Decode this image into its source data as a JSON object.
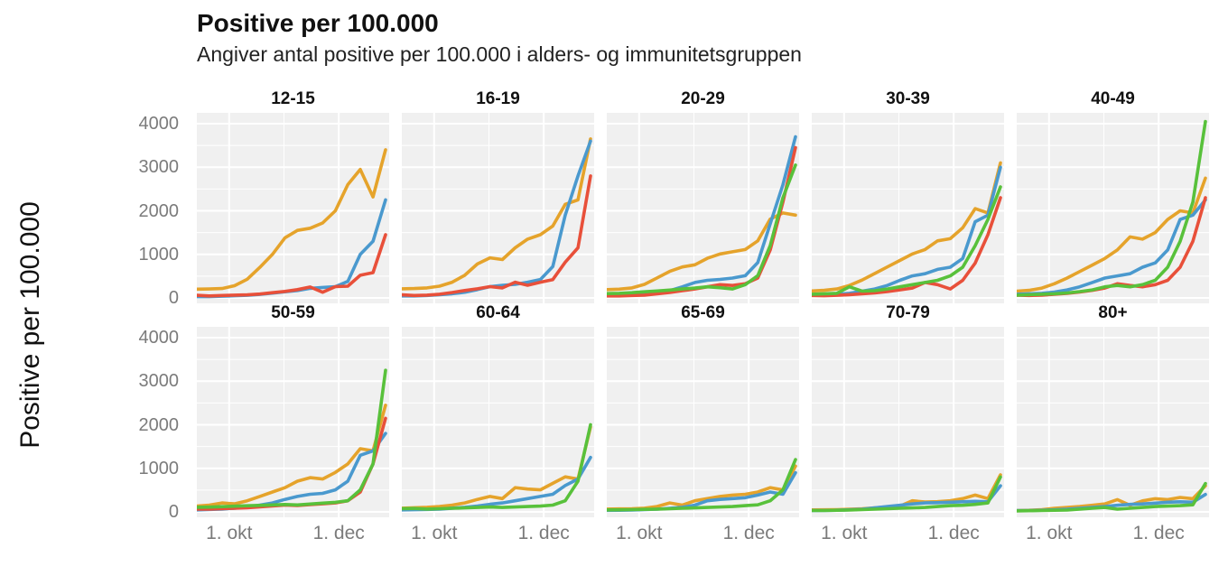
{
  "header": {
    "title": "Positive per 100.000",
    "subtitle": "Angiver antal positive per 100.000 i alders- og immunitetsgruppen"
  },
  "chart_data": {
    "type": "line",
    "title": "Positive per 100.000",
    "subtitle": "Angiver antal positive per 100.000 i alders- og immunitetsgruppen",
    "ylabel": "Positive per 100.000",
    "xlabel": "",
    "ylim": [
      0,
      4000
    ],
    "yticks": [
      0,
      1000,
      2000,
      3000,
      4000
    ],
    "y_minor": [
      500,
      1500,
      2500,
      3500
    ],
    "xticks": [
      {
        "label": "1. okt",
        "pos": 16.8
      },
      {
        "label": "1. dec",
        "pos": 73.8
      }
    ],
    "x_minor_pos": [
      45.3
    ],
    "grid": "on",
    "legend": "none",
    "panel_bg": "#f0f0f0",
    "grid_color": "#ffffff",
    "palette": {
      "orange": "#E5A32B",
      "blue": "#4A99CE",
      "red": "#E8503A",
      "green": "#58C13B"
    },
    "x_pct": [
      0,
      6.5,
      13.1,
      19.6,
      26.2,
      32.7,
      39.3,
      45.8,
      52.3,
      58.9,
      65.4,
      72.0,
      78.5,
      85.0,
      91.6,
      98.1
    ],
    "rows": [
      {
        "facets": [
          {
            "label": "12-15",
            "series": [
              {
                "color": "orange",
                "values": [
                  200,
                  205,
                  215,
                  280,
                  430,
                  700,
                  1000,
                  1380,
                  1550,
                  1600,
                  1720,
                  2000,
                  2600,
                  2950,
                  2320,
                  3400
                ]
              },
              {
                "color": "blue",
                "values": [
                  30,
                  30,
                  40,
                  50,
                  60,
                  80,
                  110,
                  140,
                  170,
                  220,
                  240,
                  260,
                  380,
                  1000,
                  1300,
                  2250
                ]
              },
              {
                "color": "red",
                "values": [
                  60,
                  45,
                  55,
                  65,
                  70,
                  90,
                  120,
                  150,
                  190,
                  250,
                  130,
                  260,
                  270,
                  520,
                  580,
                  1450
                ]
              }
            ]
          },
          {
            "label": "16-19",
            "series": [
              {
                "color": "orange",
                "values": [
                  210,
                  215,
                  230,
                  270,
                  360,
                  520,
                  780,
                  920,
                  880,
                  1150,
                  1350,
                  1450,
                  1650,
                  2150,
                  2250,
                  3650
                ]
              },
              {
                "color": "blue",
                "values": [
                  45,
                  45,
                  55,
                  75,
                  95,
                  130,
                  190,
                  260,
                  290,
                  310,
                  360,
                  420,
                  720,
                  1900,
                  2800,
                  3600
                ]
              },
              {
                "color": "red",
                "values": [
                  70,
                  55,
                  65,
                  85,
                  125,
                  170,
                  210,
                  260,
                  230,
                  360,
                  290,
                  360,
                  420,
                  820,
                  1150,
                  2800
                ]
              }
            ]
          },
          {
            "label": "20-29",
            "series": [
              {
                "color": "orange",
                "values": [
                  190,
                  200,
                  230,
                  310,
                  460,
                  610,
                  710,
                  760,
                  910,
                  1010,
                  1060,
                  1110,
                  1310,
                  1810,
                  1950,
                  1900
                ]
              },
              {
                "color": "blue",
                "values": [
                  65,
                  65,
                  75,
                  95,
                  125,
                  165,
                  255,
                  355,
                  405,
                  425,
                  455,
                  510,
                  810,
                  1700,
                  2600,
                  3700
                ]
              },
              {
                "color": "red",
                "values": [
                  45,
                  45,
                  55,
                  65,
                  95,
                  125,
                  165,
                  205,
                  255,
                  305,
                  285,
                  325,
                  455,
                  1100,
                  2200,
                  3450
                ]
              },
              {
                "color": "green",
                "values": [
                  100,
                  105,
                  120,
                  140,
                  160,
                  180,
                  205,
                  225,
                  255,
                  235,
                  205,
                  305,
                  510,
                  1200,
                  2300,
                  3050
                ]
              }
            ]
          },
          {
            "label": "30-39",
            "series": [
              {
                "color": "orange",
                "values": [
                  160,
                  175,
                  205,
                  285,
                  410,
                  560,
                  710,
                  860,
                  1010,
                  1110,
                  1310,
                  1360,
                  1610,
                  2050,
                  1950,
                  3100
                ]
              },
              {
                "color": "blue",
                "values": [
                  65,
                  75,
                  85,
                  105,
                  155,
                  205,
                  285,
                  405,
                  505,
                  555,
                  655,
                  705,
                  905,
                  1750,
                  1900,
                  3000
                ]
              },
              {
                "color": "red",
                "values": [
                  55,
                  50,
                  60,
                  75,
                  95,
                  115,
                  145,
                  185,
                  225,
                  355,
                  305,
                  205,
                  405,
                  800,
                  1450,
                  2300
                ]
              },
              {
                "color": "green",
                "values": [
                  85,
                  95,
                  105,
                  255,
                  155,
                  165,
                  205,
                  255,
                  305,
                  355,
                  405,
                  505,
                  705,
                  1200,
                  1800,
                  2550
                ]
              }
            ]
          },
          {
            "label": "40-49",
            "series": [
              {
                "color": "orange",
                "values": [
                  155,
                  175,
                  225,
                  325,
                  455,
                  605,
                  755,
                  905,
                  1100,
                  1400,
                  1350,
                  1500,
                  1800,
                  2000,
                  1950,
                  2750
                ]
              },
              {
                "color": "blue",
                "values": [
                  85,
                  95,
                  105,
                  135,
                  185,
                  255,
                  355,
                  455,
                  505,
                  555,
                  705,
                  805,
                  1100,
                  1800,
                  1900,
                  2250
                ]
              },
              {
                "color": "red",
                "values": [
                  65,
                  55,
                  65,
                  85,
                  105,
                  135,
                  175,
                  225,
                  325,
                  285,
                  255,
                  305,
                  405,
                  705,
                  1300,
                  2300
                ]
              },
              {
                "color": "green",
                "values": [
                  65,
                  75,
                  85,
                  95,
                  115,
                  145,
                  185,
                  255,
                  285,
                  255,
                  305,
                  405,
                  705,
                  1300,
                  2200,
                  4050
                ]
              }
            ]
          }
        ]
      },
      {
        "facets": [
          {
            "label": "50-59",
            "series": [
              {
                "color": "orange",
                "values": [
                  135,
                  155,
                  205,
                  185,
                  255,
                  355,
                  455,
                  555,
                  705,
                  785,
                  755,
                  905,
                  1100,
                  1450,
                  1400,
                  2450
                ]
              },
              {
                "color": "blue",
                "values": [
                  45,
                  55,
                  65,
                  85,
                  115,
                  155,
                  205,
                  285,
                  355,
                  405,
                  425,
                  505,
                  705,
                  1300,
                  1400,
                  1800
                ]
              },
              {
                "color": "red",
                "values": [
                  65,
                  65,
                  75,
                  85,
                  95,
                  115,
                  135,
                  155,
                  145,
                  165,
                  185,
                  205,
                  255,
                  455,
                  1100,
                  2150
                ]
              },
              {
                "color": "green",
                "values": [
                  105,
                  110,
                  120,
                  130,
                  140,
                  150,
                  160,
                  170,
                  160,
                  180,
                  200,
                  220,
                  255,
                  505,
                  1100,
                  3250
                ]
              }
            ]
          },
          {
            "label": "60-64",
            "series": [
              {
                "color": "orange",
                "values": [
                  85,
                  95,
                  105,
                  125,
                  155,
                  205,
                  285,
                  355,
                  305,
                  555,
                  525,
                  505,
                  655,
                  805,
                  755,
                  1950
                ]
              },
              {
                "color": "blue",
                "values": [
                  45,
                  50,
                  55,
                  65,
                  85,
                  105,
                  135,
                  175,
                  205,
                  255,
                  305,
                  355,
                  405,
                  605,
                  755,
                  1250
                ]
              },
              {
                "color": "green",
                "values": [
                  75,
                  78,
                  65,
                  72,
                  82,
                  92,
                  102,
                  112,
                  102,
                  112,
                  122,
                  132,
                  155,
                  255,
                  705,
                  2000
                ]
              }
            ]
          },
          {
            "label": "65-69",
            "series": [
              {
                "color": "orange",
                "values": [
                  65,
                  68,
                  72,
                  85,
                  125,
                  205,
                  155,
                  255,
                  305,
                  355,
                  385,
                  405,
                  455,
                  555,
                  505,
                  1050
                ]
              },
              {
                "color": "blue",
                "values": [
                  35,
                  38,
                  42,
                  52,
                  62,
                  82,
                  105,
                  155,
                  255,
                  285,
                  305,
                  325,
                  385,
                  455,
                  405,
                  900
                ]
              },
              {
                "color": "green",
                "values": [
                  45,
                  48,
                  52,
                  58,
                  62,
                  72,
                  82,
                  92,
                  102,
                  112,
                  122,
                  142,
                  162,
                  255,
                  505,
                  1200
                ]
              }
            ]
          },
          {
            "label": "70-79",
            "series": [
              {
                "color": "orange",
                "values": [
                  45,
                  48,
                  52,
                  62,
                  72,
                  92,
                  112,
                  132,
                  255,
                  225,
                  235,
                  255,
                  305,
                  385,
                  305,
                  850
                ]
              },
              {
                "color": "blue",
                "values": [
                  28,
                  32,
                  38,
                  48,
                  62,
                  92,
                  122,
                  152,
                  182,
                  205,
                  212,
                  222,
                  232,
                  242,
                  232,
                  600
                ]
              },
              {
                "color": "green",
                "values": [
                  32,
                  32,
                  38,
                  42,
                  52,
                  62,
                  72,
                  82,
                  92,
                  102,
                  122,
                  142,
                  152,
                  172,
                  205,
                  800
                ]
              }
            ]
          },
          {
            "label": "80+",
            "series": [
              {
                "color": "orange",
                "values": [
                  32,
                  38,
                  52,
                  82,
                  102,
                  122,
                  152,
                  182,
                  282,
                  152,
                  252,
                  302,
                  282,
                  332,
                  302,
                  600
                ]
              },
              {
                "color": "blue",
                "values": [
                  28,
                  32,
                  38,
                  48,
                  62,
                  82,
                  102,
                  122,
                  152,
                  172,
                  182,
                  202,
                  222,
                  232,
                  222,
                  400
                ]
              },
              {
                "color": "green",
                "values": [
                  22,
                  26,
                  32,
                  38,
                  42,
                  62,
                  82,
                  102,
                  62,
                  82,
                  102,
                  122,
                  132,
                  142,
                  162,
                  650
                ]
              }
            ]
          }
        ]
      }
    ]
  }
}
